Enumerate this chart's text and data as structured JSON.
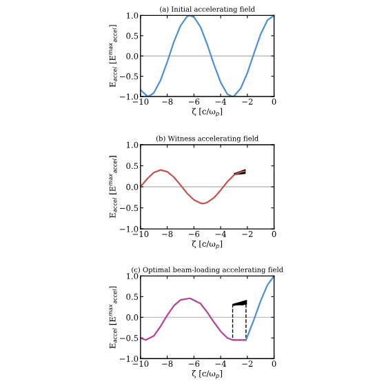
{
  "chart_data": [
    {
      "type": "line",
      "title": "(a) Initial accelerating field",
      "xlabel": "ζ [c/ω$_{p}$]",
      "ylabel": "E$_{accel}$ [E$^{max}$$_{accel}$]",
      "series": [
        {
          "color": "#4a90d9",
          "x": [
            -10,
            -9.5,
            -9.4,
            -9,
            -8.5,
            -8,
            -7.5,
            -7,
            -6.5,
            -6.3,
            -6,
            -5.5,
            -5,
            -4.5,
            -4,
            -3.5,
            -3.15,
            -3,
            -2.5,
            -2,
            -1.5,
            -1,
            -0.5,
            0
          ],
          "values": [
            -0.84,
            -0.99,
            -1.0,
            -0.91,
            -0.6,
            -0.15,
            0.35,
            0.75,
            0.98,
            1.0,
            0.96,
            0.71,
            0.28,
            -0.21,
            -0.65,
            -0.94,
            -1.0,
            -0.99,
            -0.8,
            -0.42,
            0.07,
            0.54,
            0.88,
            1.0
          ]
        }
      ],
      "xlim": [
        -10,
        0
      ],
      "ylim": [
        -1,
        1
      ],
      "xticks": [
        {
          "value": -10,
          "label": "−10"
        },
        {
          "value": -8,
          "label": "−8"
        },
        {
          "value": -6,
          "label": "−6"
        },
        {
          "value": -4,
          "label": "−4"
        },
        {
          "value": -2,
          "label": "−2"
        },
        {
          "value": 0,
          "label": "0"
        }
      ],
      "yticks": [
        {
          "value": -1,
          "label": "−1.0"
        },
        {
          "value": -0.5,
          "label": "−0.5"
        },
        {
          "value": 0,
          "label": "0.0"
        },
        {
          "value": 0.5,
          "label": "0.5"
        },
        {
          "value": 1,
          "label": "1.0"
        }
      ],
      "ref_lines": [
        {
          "axis": "y",
          "value": 0,
          "color": "#bbbbbb"
        }
      ]
    },
    {
      "type": "line",
      "title": "(b) Witness accelerating field",
      "xlabel": "ζ [c/ω$_{p}$]",
      "ylabel": "E$_{accel}$ [E$^{max}$$_{accel}$]",
      "series": [
        {
          "color": "#c9504c",
          "x": [
            -10,
            -9.5,
            -9,
            -8.5,
            -8,
            -7.5,
            -7,
            -6.5,
            -6,
            -5.5,
            -5.3,
            -5,
            -4.5,
            -4,
            -3.5,
            -3,
            -2.5,
            -2.2
          ],
          "values": [
            0,
            0.19,
            0.34,
            0.4,
            0.36,
            0.23,
            0.04,
            -0.16,
            -0.31,
            -0.39,
            -0.4,
            -0.37,
            -0.26,
            -0.08,
            0.12,
            0.28,
            0.35,
            0.37
          ]
        }
      ],
      "xlim": [
        -10,
        0
      ],
      "ylim": [
        -1,
        1
      ],
      "xticks": [
        {
          "value": -10,
          "label": "−10"
        },
        {
          "value": -8,
          "label": "−8"
        },
        {
          "value": -6,
          "label": "−6"
        },
        {
          "value": -4,
          "label": "−4"
        },
        {
          "value": -2,
          "label": "−2"
        },
        {
          "value": 0,
          "label": "0"
        }
      ],
      "yticks": [
        {
          "value": -1,
          "label": "−1.0"
        },
        {
          "value": -0.5,
          "label": "−0.5"
        },
        {
          "value": 0,
          "label": "0.0"
        },
        {
          "value": 0.5,
          "label": "0.5"
        },
        {
          "value": 1,
          "label": "1.0"
        }
      ],
      "ref_lines": [
        {
          "axis": "y",
          "value": 0,
          "color": "#bbbbbb"
        }
      ]
    },
    {
      "type": "line",
      "title": "(c) Optimal beam-loading accelerating field",
      "xlabel": "ζ [c/ω$_{p}$]",
      "ylabel": "E$_{accel}$ [E$^{max}$$_{accel}$]",
      "series": [
        {
          "color": "#b5409a",
          "x": [
            -10,
            -9.6,
            -9,
            -8.5,
            -8,
            -7.5,
            -7,
            -6.3,
            -5.5,
            -5,
            -4.5,
            -4,
            -3.5,
            -3.1,
            -2.1
          ],
          "values": [
            -0.5,
            -0.55,
            -0.45,
            -0.22,
            0.05,
            0.28,
            0.42,
            0.46,
            0.33,
            0.12,
            -0.12,
            -0.34,
            -0.5,
            -0.55,
            -0.55
          ]
        },
        {
          "color": "#4a90d9",
          "x": [
            -2.1,
            -1.5,
            -1,
            -0.5,
            0
          ],
          "values": [
            -0.55,
            -0.05,
            0.4,
            0.78,
            1.0
          ]
        }
      ],
      "xlim": [
        -10,
        0
      ],
      "ylim": [
        -1,
        1
      ],
      "xticks": [
        {
          "value": -10,
          "label": "−10"
        },
        {
          "value": -8,
          "label": "−8"
        },
        {
          "value": -6,
          "label": "−6"
        },
        {
          "value": -4,
          "label": "−4"
        },
        {
          "value": -2,
          "label": "−2"
        },
        {
          "value": 0,
          "label": "0"
        }
      ],
      "yticks": [
        {
          "value": -1,
          "label": "−1.0"
        },
        {
          "value": -0.5,
          "label": "−0.5"
        },
        {
          "value": 0,
          "label": "0.0"
        },
        {
          "value": 0.5,
          "label": "0.5"
        },
        {
          "value": 1,
          "label": "1.0"
        }
      ],
      "ref_lines": [
        {
          "axis": "y",
          "value": 0,
          "color": "#bbbbbb"
        }
      ]
    }
  ]
}
